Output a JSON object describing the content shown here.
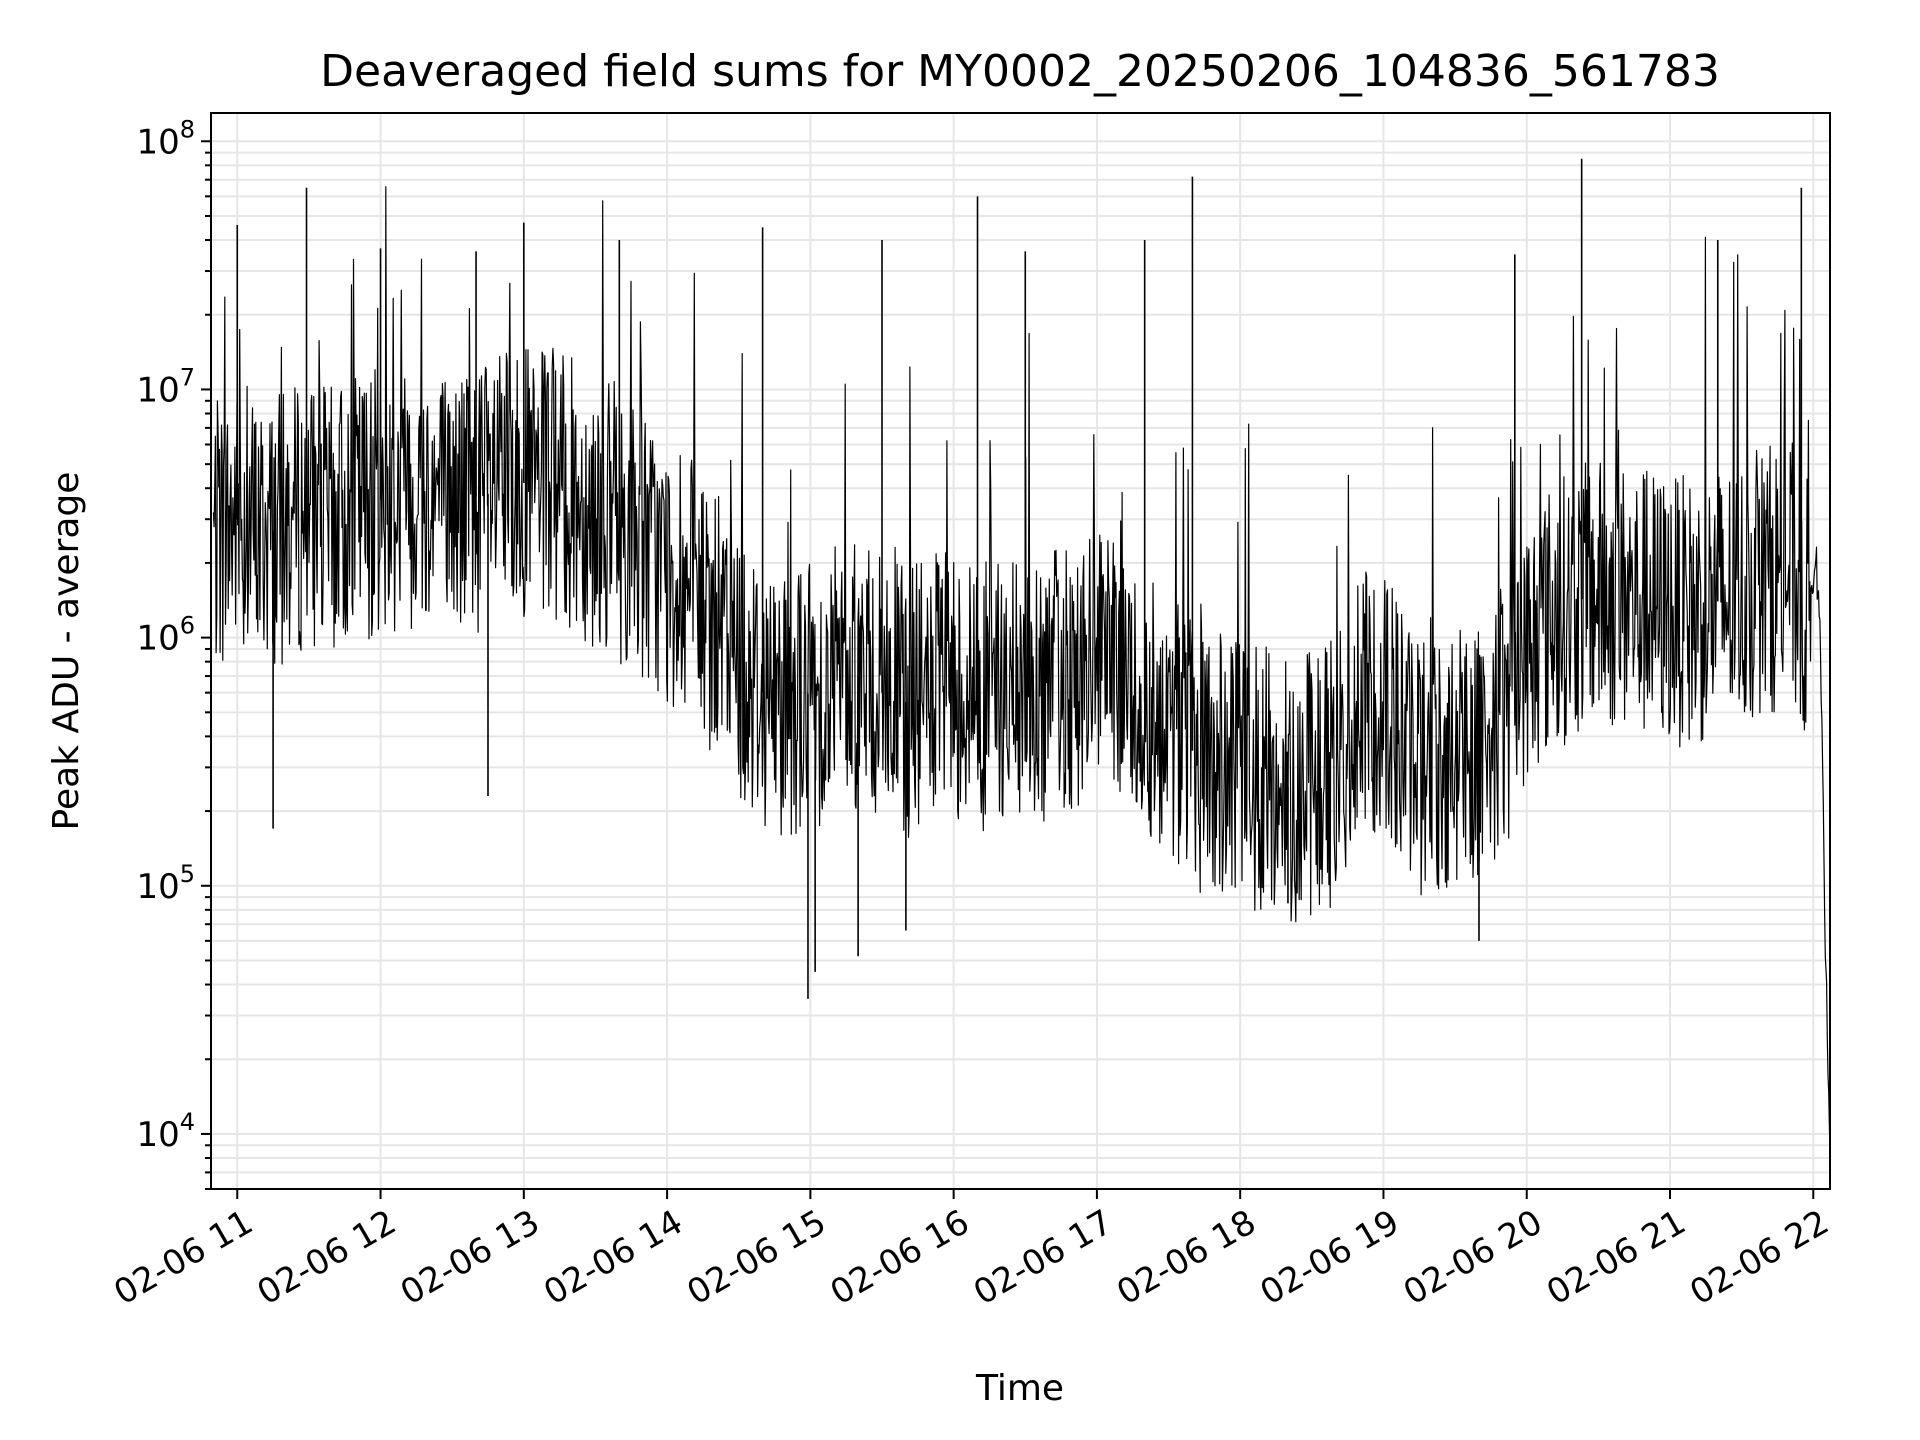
{
  "chart_data": {
    "type": "line",
    "title": "Deaveraged field sums for MY0002_20250206_104836_561783",
    "xlabel": "Time",
    "ylabel": "Peak ADU - average",
    "y_scale": "log",
    "ylim": [
      6000,
      130000000
    ],
    "xlim": [
      "2025-02-06 10:49",
      "2025-02-06 22:07"
    ],
    "grid": true,
    "line_color": "#000000",
    "grid_color": "#e6e6e6",
    "x_ticks": [
      {
        "t": "2025-02-06 11:00",
        "label": "02-06 11"
      },
      {
        "t": "2025-02-06 12:00",
        "label": "02-06 12"
      },
      {
        "t": "2025-02-06 13:00",
        "label": "02-06 13"
      },
      {
        "t": "2025-02-06 14:00",
        "label": "02-06 14"
      },
      {
        "t": "2025-02-06 15:00",
        "label": "02-06 15"
      },
      {
        "t": "2025-02-06 16:00",
        "label": "02-06 16"
      },
      {
        "t": "2025-02-06 17:00",
        "label": "02-06 17"
      },
      {
        "t": "2025-02-06 18:00",
        "label": "02-06 18"
      },
      {
        "t": "2025-02-06 19:00",
        "label": "02-06 19"
      },
      {
        "t": "2025-02-06 20:00",
        "label": "02-06 20"
      },
      {
        "t": "2025-02-06 21:00",
        "label": "02-06 21"
      },
      {
        "t": "2025-02-06 22:00",
        "label": "02-06 22"
      }
    ],
    "y_ticks": [
      {
        "value": 10000,
        "base": "10",
        "exp": "4"
      },
      {
        "value": 100000,
        "base": "10",
        "exp": "5"
      },
      {
        "value": 1000000,
        "base": "10",
        "exp": "6"
      },
      {
        "value": 10000000,
        "base": "10",
        "exp": "7"
      },
      {
        "value": 100000000,
        "base": "10",
        "exp": "8"
      }
    ],
    "series": [
      {
        "points": [
          [
            "2025-02-06 10:50",
            2500000
          ],
          [
            "2025-02-06 11:00",
            3000000
          ],
          [
            "2025-02-06 11:10",
            2600000
          ],
          [
            "2025-02-06 11:20",
            2800000
          ],
          [
            "2025-02-06 11:30",
            3200000
          ],
          [
            "2025-02-06 11:40",
            2900000
          ],
          [
            "2025-02-06 11:50",
            3400000
          ],
          [
            "2025-02-06 12:00",
            3600000
          ],
          [
            "2025-02-06 12:10",
            3800000
          ],
          [
            "2025-02-06 12:20",
            4000000
          ],
          [
            "2025-02-06 12:30",
            3500000
          ],
          [
            "2025-02-06 12:40",
            3700000
          ],
          [
            "2025-02-06 12:50",
            3900000
          ],
          [
            "2025-02-06 13:00",
            4200000
          ],
          [
            "2025-02-06 13:10",
            4000000
          ],
          [
            "2025-02-06 13:20",
            3800000
          ],
          [
            "2025-02-06 13:30",
            3200000
          ],
          [
            "2025-02-06 13:40",
            2800000
          ],
          [
            "2025-02-06 13:50",
            2400000
          ],
          [
            "2025-02-06 14:00",
            1800000
          ],
          [
            "2025-02-06 14:10",
            1500000
          ],
          [
            "2025-02-06 14:20",
            1100000
          ],
          [
            "2025-02-06 14:30",
            800000
          ],
          [
            "2025-02-06 14:40",
            600000
          ],
          [
            "2025-02-06 14:50",
            550000
          ],
          [
            "2025-02-06 15:00",
            600000
          ],
          [
            "2025-02-06 15:10",
            650000
          ],
          [
            "2025-02-06 15:20",
            700000
          ],
          [
            "2025-02-06 15:30",
            600000
          ],
          [
            "2025-02-06 15:40",
            550000
          ],
          [
            "2025-02-06 15:50",
            600000
          ],
          [
            "2025-02-06 16:00",
            650000
          ],
          [
            "2025-02-06 16:10",
            600000
          ],
          [
            "2025-02-06 16:20",
            550000
          ],
          [
            "2025-02-06 16:30",
            600000
          ],
          [
            "2025-02-06 16:40",
            650000
          ],
          [
            "2025-02-06 16:50",
            700000
          ],
          [
            "2025-02-06 17:00",
            750000
          ],
          [
            "2025-02-06 17:10",
            650000
          ],
          [
            "2025-02-06 17:20",
            550000
          ],
          [
            "2025-02-06 17:30",
            450000
          ],
          [
            "2025-02-06 17:40",
            350000
          ],
          [
            "2025-02-06 17:50",
            300000
          ],
          [
            "2025-02-06 18:00",
            280000
          ],
          [
            "2025-02-06 18:10",
            260000
          ],
          [
            "2025-02-06 18:20",
            250000
          ],
          [
            "2025-02-06 18:30",
            260000
          ],
          [
            "2025-02-06 18:40",
            300000
          ],
          [
            "2025-02-06 18:50",
            500000
          ],
          [
            "2025-02-06 19:00",
            600000
          ],
          [
            "2025-02-06 19:10",
            350000
          ],
          [
            "2025-02-06 19:20",
            300000
          ],
          [
            "2025-02-06 19:30",
            330000
          ],
          [
            "2025-02-06 19:40",
            380000
          ],
          [
            "2025-02-06 19:50",
            450000
          ],
          [
            "2025-02-06 20:00",
            900000
          ],
          [
            "2025-02-06 20:10",
            1200000
          ],
          [
            "2025-02-06 20:20",
            1400000
          ],
          [
            "2025-02-06 20:30",
            1500000
          ],
          [
            "2025-02-06 20:40",
            1450000
          ],
          [
            "2025-02-06 20:50",
            1350000
          ],
          [
            "2025-02-06 21:00",
            1300000
          ],
          [
            "2025-02-06 21:10",
            1250000
          ],
          [
            "2025-02-06 21:20",
            1400000
          ],
          [
            "2025-02-06 21:30",
            1500000
          ],
          [
            "2025-02-06 21:40",
            1700000
          ],
          [
            "2025-02-06 21:50",
            1900000
          ],
          [
            "2025-02-06 21:58",
            1200000
          ],
          [
            "2025-02-06 22:01",
            2300000
          ],
          [
            "2025-02-06 22:03",
            900000
          ],
          [
            "2025-02-06 22:05",
            60000
          ],
          [
            "2025-02-06 22:07",
            9500
          ]
        ],
        "spikes": [
          [
            "2025-02-06 11:29",
            65000000
          ],
          [
            "2025-02-06 11:00",
            46000000
          ],
          [
            "2025-02-06 12:00",
            37000000
          ],
          [
            "2025-02-06 13:00",
            47000000
          ],
          [
            "2025-02-06 12:40",
            36000000
          ],
          [
            "2025-02-06 13:40",
            40000000
          ],
          [
            "2025-02-06 14:40",
            45000000
          ],
          [
            "2025-02-06 15:30",
            40000000
          ],
          [
            "2025-02-06 16:10",
            60000000
          ],
          [
            "2025-02-06 16:30",
            36000000
          ],
          [
            "2025-02-06 17:20",
            40000000
          ],
          [
            "2025-02-06 17:40",
            72000000
          ],
          [
            "2025-02-06 19:55",
            35000000
          ],
          [
            "2025-02-06 20:23",
            85000000
          ],
          [
            "2025-02-06 21:20",
            40000000
          ],
          [
            "2025-02-06 21:55",
            65000000
          ],
          [
            "2025-02-06 14:59",
            35000
          ],
          [
            "2025-02-06 15:02",
            45000
          ],
          [
            "2025-02-06 15:20",
            52000
          ],
          [
            "2025-02-06 15:40",
            66000
          ],
          [
            "2025-02-06 19:40",
            60000
          ],
          [
            "2025-02-06 18:20",
            85000
          ],
          [
            "2025-02-06 11:15",
            170000
          ],
          [
            "2025-02-06 12:45",
            230000
          ]
        ]
      }
    ]
  }
}
